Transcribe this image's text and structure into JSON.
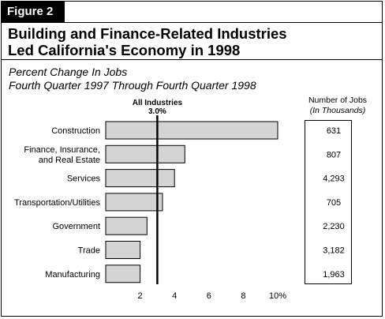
{
  "figure": {
    "tag": "Figure 2",
    "title_line1": "Building and Finance-Related Industries",
    "title_line2": "Led California's Economy in 1998",
    "subtitle_line1": "Percent Change In Jobs",
    "subtitle_line2": "Fourth Quarter 1997 Through Fourth Quarter 1998"
  },
  "jobs_column": {
    "header": "Number of Jobs",
    "unit": "(In Thousands)"
  },
  "colors": {
    "bar_fill": "#d4d4d4",
    "bar_stroke": "#000000",
    "reference_line": "#000000"
  },
  "chart_data": {
    "type": "bar",
    "orientation": "horizontal",
    "categories": [
      [
        "Construction"
      ],
      [
        "Finance, Insurance,",
        "and Real Estate"
      ],
      [
        "Services"
      ],
      [
        "Transportation/Utilities"
      ],
      [
        "Government"
      ],
      [
        "Trade"
      ],
      [
        "Manufacturing"
      ]
    ],
    "values": [
      10.0,
      4.6,
      4.0,
      3.3,
      2.4,
      2.0,
      2.0
    ],
    "jobs_thousands": [
      "631",
      "807",
      "4,293",
      "705",
      "2,230",
      "3,182",
      "1,963"
    ],
    "xlim": [
      0,
      10
    ],
    "xticks": [
      2,
      4,
      6,
      8,
      10
    ],
    "xtick_labels": [
      "2",
      "4",
      "6",
      "8",
      "10%"
    ],
    "reference": {
      "value": 3.0,
      "label_line1": "All Industries",
      "label_line2": "3.0%"
    }
  }
}
